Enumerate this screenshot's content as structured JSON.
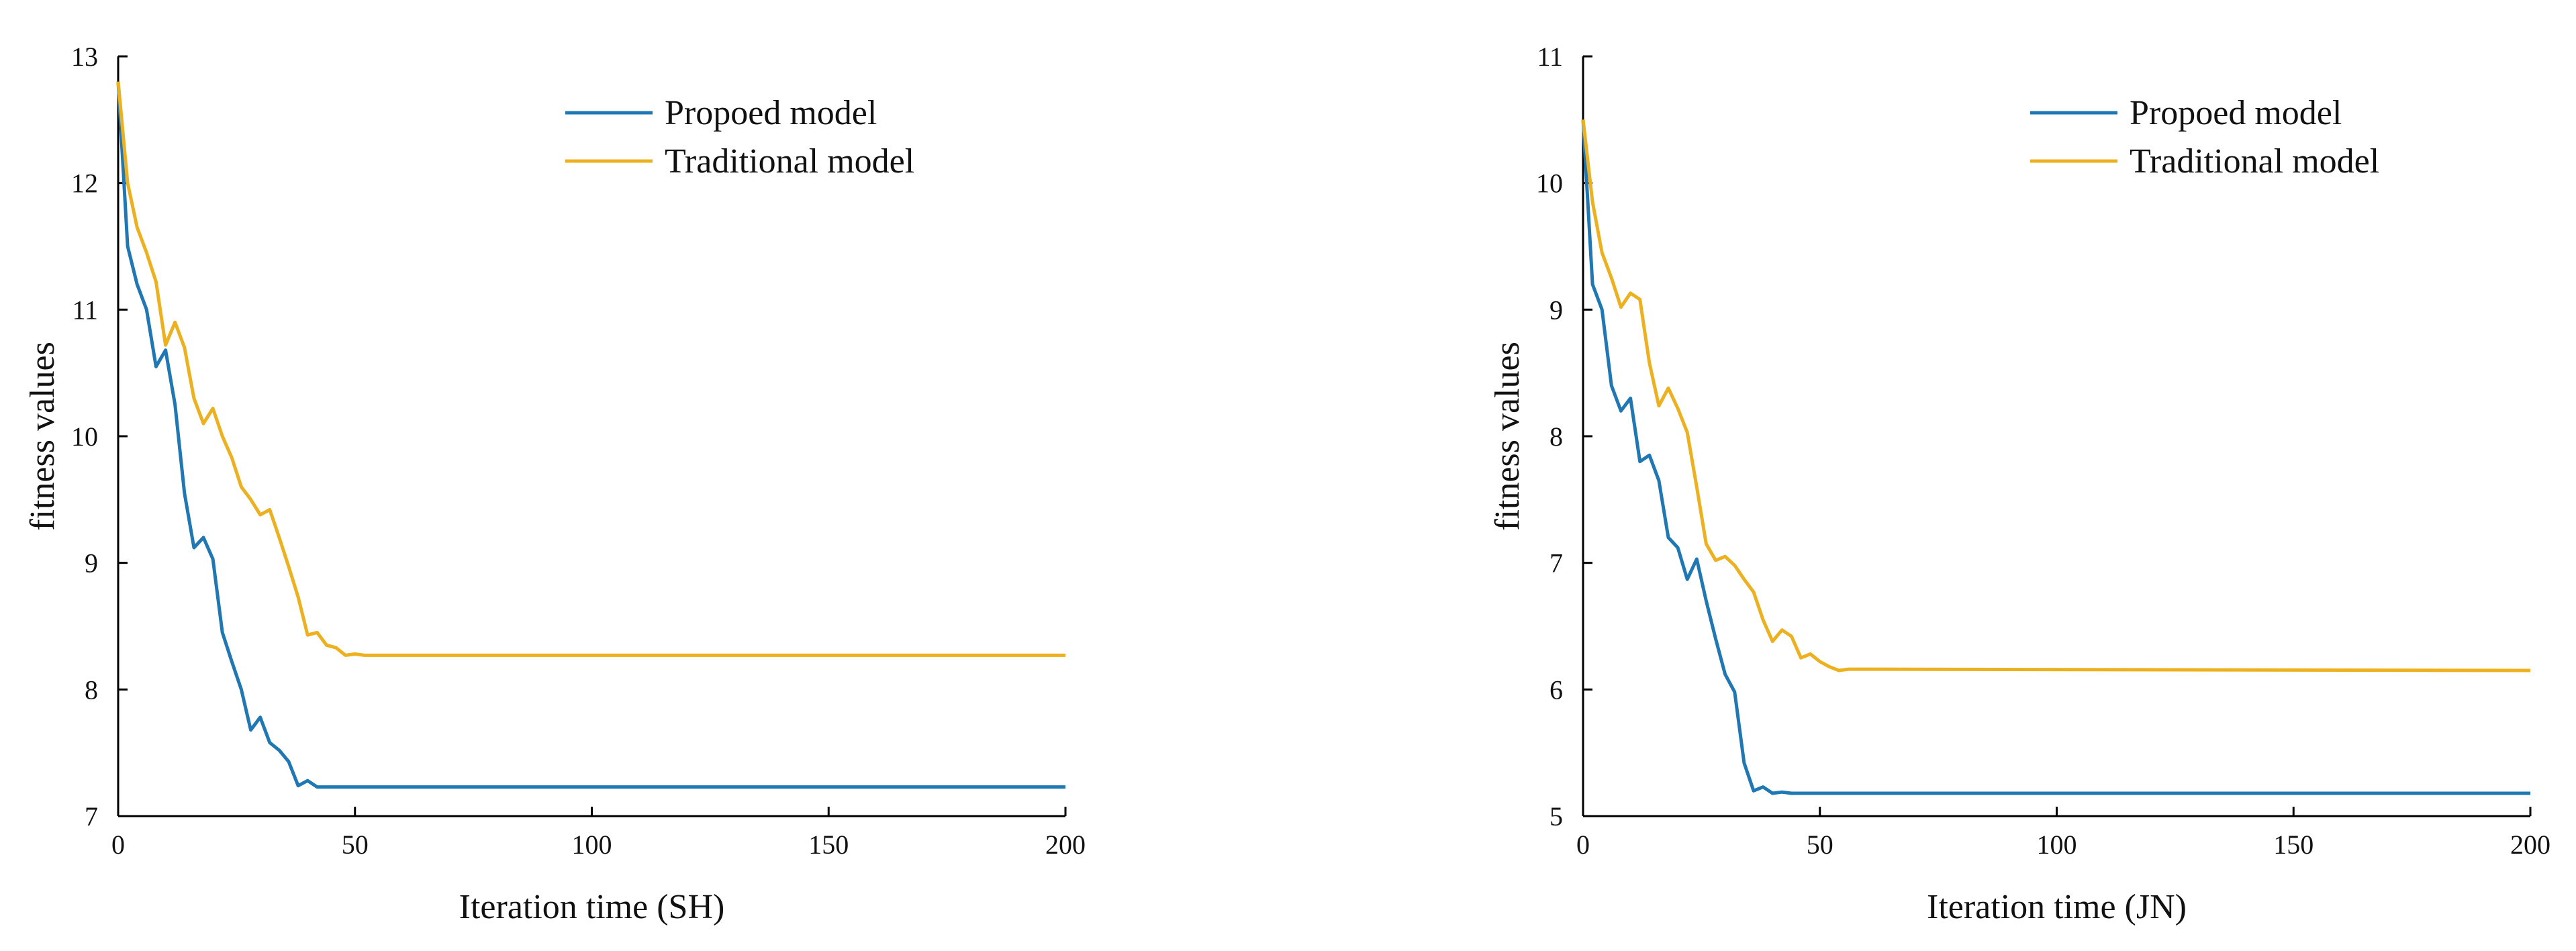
{
  "chart_data": [
    {
      "type": "line",
      "title": "",
      "xlabel": "Iteration time (SH)",
      "ylabel": "fitness values",
      "xlim": [
        0,
        200
      ],
      "ylim": [
        7,
        13
      ],
      "xticks": [
        "0",
        "50",
        "100",
        "150",
        "200"
      ],
      "yticks": [
        "7",
        "8",
        "9",
        "10",
        "11",
        "12",
        "13"
      ],
      "legend_position": "top-right",
      "grid": false,
      "series": [
        {
          "name": "Propoed model",
          "color": "#1f77b4",
          "points": [
            [
              0,
              12.8
            ],
            [
              2,
              11.5
            ],
            [
              4,
              11.2
            ],
            [
              6,
              11.0
            ],
            [
              8,
              10.55
            ],
            [
              10,
              10.68
            ],
            [
              12,
              10.25
            ],
            [
              14,
              9.55
            ],
            [
              16,
              9.12
            ],
            [
              18,
              9.2
            ],
            [
              20,
              9.03
            ],
            [
              22,
              8.45
            ],
            [
              24,
              8.22
            ],
            [
              26,
              8.0
            ],
            [
              28,
              7.68
            ],
            [
              30,
              7.78
            ],
            [
              32,
              7.58
            ],
            [
              34,
              7.52
            ],
            [
              36,
              7.43
            ],
            [
              38,
              7.24
            ],
            [
              40,
              7.28
            ],
            [
              42,
              7.23
            ],
            [
              200,
              7.23
            ]
          ]
        },
        {
          "name": "Traditional model",
          "color": "#edb120",
          "points": [
            [
              0,
              12.8
            ],
            [
              2,
              12.0
            ],
            [
              4,
              11.65
            ],
            [
              6,
              11.45
            ],
            [
              8,
              11.22
            ],
            [
              10,
              10.72
            ],
            [
              12,
              10.9
            ],
            [
              14,
              10.7
            ],
            [
              16,
              10.3
            ],
            [
              18,
              10.1
            ],
            [
              20,
              10.22
            ],
            [
              22,
              10.0
            ],
            [
              24,
              9.83
            ],
            [
              26,
              9.6
            ],
            [
              28,
              9.5
            ],
            [
              30,
              9.38
            ],
            [
              32,
              9.42
            ],
            [
              34,
              9.2
            ],
            [
              36,
              8.97
            ],
            [
              38,
              8.73
            ],
            [
              40,
              8.43
            ],
            [
              42,
              8.45
            ],
            [
              44,
              8.35
            ],
            [
              46,
              8.33
            ],
            [
              48,
              8.27
            ],
            [
              50,
              8.28
            ],
            [
              52,
              8.27
            ],
            [
              200,
              8.27
            ]
          ]
        }
      ]
    },
    {
      "type": "line",
      "title": "",
      "xlabel": "Iteration time (JN)",
      "ylabel": "fitness values",
      "xlim": [
        0,
        200
      ],
      "ylim": [
        5,
        11
      ],
      "xticks": [
        "0",
        "50",
        "100",
        "150",
        "200"
      ],
      "yticks": [
        "5",
        "6",
        "7",
        "8",
        "9",
        "10",
        "11"
      ],
      "legend_position": "top-right",
      "grid": false,
      "series": [
        {
          "name": "Propoed model",
          "color": "#1f77b4",
          "points": [
            [
              0,
              10.5
            ],
            [
              2,
              9.2
            ],
            [
              4,
              9.0
            ],
            [
              6,
              8.4
            ],
            [
              8,
              8.2
            ],
            [
              10,
              8.3
            ],
            [
              12,
              7.8
            ],
            [
              14,
              7.85
            ],
            [
              16,
              7.65
            ],
            [
              18,
              7.2
            ],
            [
              20,
              7.12
            ],
            [
              22,
              6.87
            ],
            [
              24,
              7.03
            ],
            [
              26,
              6.7
            ],
            [
              28,
              6.4
            ],
            [
              30,
              6.12
            ],
            [
              32,
              5.98
            ],
            [
              34,
              5.42
            ],
            [
              36,
              5.2
            ],
            [
              38,
              5.23
            ],
            [
              40,
              5.18
            ],
            [
              42,
              5.19
            ],
            [
              44,
              5.18
            ],
            [
              200,
              5.18
            ]
          ]
        },
        {
          "name": "Traditional model",
          "color": "#edb120",
          "points": [
            [
              0,
              10.5
            ],
            [
              2,
              9.85
            ],
            [
              4,
              9.45
            ],
            [
              6,
              9.25
            ],
            [
              8,
              9.02
            ],
            [
              10,
              9.13
            ],
            [
              12,
              9.08
            ],
            [
              14,
              8.58
            ],
            [
              16,
              8.24
            ],
            [
              18,
              8.38
            ],
            [
              20,
              8.22
            ],
            [
              22,
              8.03
            ],
            [
              24,
              7.6
            ],
            [
              26,
              7.15
            ],
            [
              28,
              7.02
            ],
            [
              30,
              7.05
            ],
            [
              32,
              6.98
            ],
            [
              34,
              6.87
            ],
            [
              36,
              6.77
            ],
            [
              38,
              6.55
            ],
            [
              40,
              6.38
            ],
            [
              42,
              6.47
            ],
            [
              44,
              6.42
            ],
            [
              46,
              6.25
            ],
            [
              48,
              6.28
            ],
            [
              50,
              6.22
            ],
            [
              52,
              6.18
            ],
            [
              54,
              6.15
            ],
            [
              56,
              6.16
            ],
            [
              200,
              6.15
            ]
          ]
        }
      ]
    }
  ]
}
